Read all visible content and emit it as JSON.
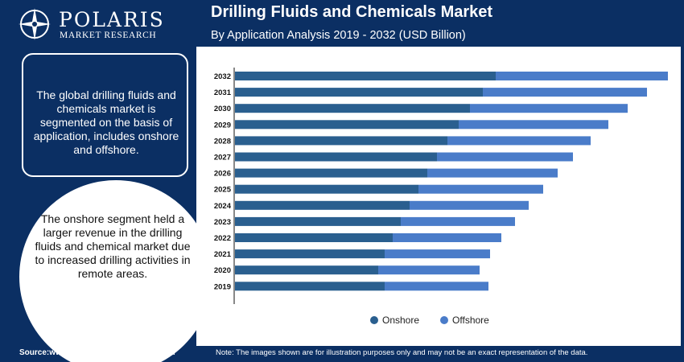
{
  "brand": {
    "name": "POLARIS",
    "tagline": "MARKET RESEARCH"
  },
  "header": {
    "title": "Drilling Fluids and Chemicals Market",
    "subtitle": "By Application Analysis 2019 - 2032 (USD Billion)"
  },
  "left_panel": {
    "box_text": "The global drilling fluids and chemicals market is segmented on the basis of application, includes onshore and offshore.",
    "circle_text": "The onshore segment held a larger revenue in the drilling fluids and chemical market due to increased drilling activities in remote areas."
  },
  "footer": {
    "source": "Source:www.polarismarketresearch.com",
    "note": "Note: The images shown are for illustration purposes only and may not be an exact representation of the data."
  },
  "colors": {
    "background": "#0b2f63",
    "onshore": "#2a5f8f",
    "offshore": "#4a7cc9"
  },
  "chart_data": {
    "type": "bar",
    "orientation": "horizontal",
    "stacked": true,
    "categories": [
      "2032",
      "2031",
      "2030",
      "2029",
      "2028",
      "2027",
      "2026",
      "2025",
      "2024",
      "2023",
      "2022",
      "2021",
      "2020",
      "2019"
    ],
    "series": [
      {
        "name": "Onshore",
        "color": "#2a5f8f",
        "values": [
          32.4,
          30.8,
          29.2,
          27.8,
          26.4,
          25.1,
          23.9,
          22.8,
          21.7,
          20.6,
          19.6,
          18.6,
          17.8,
          18.6
        ]
      },
      {
        "name": "Offshore",
        "color": "#4a7cc9",
        "values": [
          21.4,
          20.4,
          19.6,
          18.6,
          17.8,
          16.9,
          16.2,
          15.5,
          14.8,
          14.2,
          13.5,
          13.1,
          12.6,
          12.9
        ]
      }
    ],
    "xlim": [
      0,
      54
    ],
    "legend_position": "bottom",
    "grid": false
  }
}
